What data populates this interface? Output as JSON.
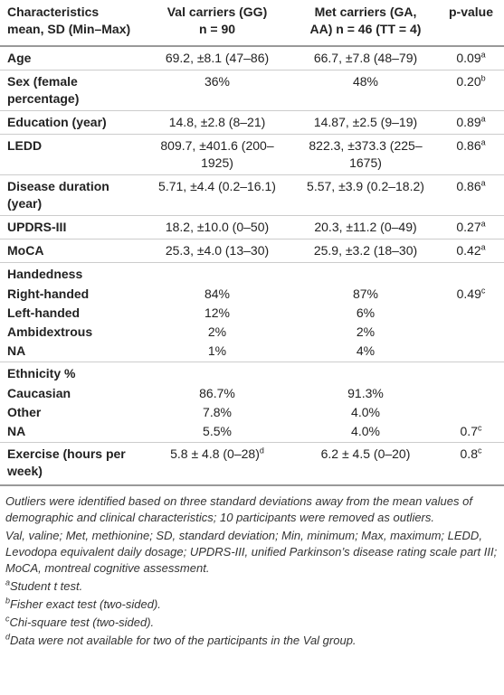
{
  "table": {
    "header": [
      [
        "Characteristics",
        "mean, SD (Min–Max)"
      ],
      [
        "Val carriers (GG)",
        "n = 90"
      ],
      [
        "Met carriers (GA,",
        "AA) n = 46 (TT = 4)"
      ],
      [
        "p-value"
      ]
    ],
    "rows": [
      {
        "label": "Age",
        "val": "69.2, ±8.1 (47–86)",
        "met": "66.7, ±7.8 (48–79)",
        "p": "0.09",
        "p_note": "a"
      },
      {
        "label": "Sex (female percentage)",
        "val": "36%",
        "met": "48%",
        "p": "0.20",
        "p_note": "b"
      },
      {
        "label": "Education (year)",
        "val": "14.8, ±2.8 (8–21)",
        "met": "14.87, ±2.5 (9–19)",
        "p": "0.89",
        "p_note": "a"
      },
      {
        "label": "LEDD",
        "val": "809.7, ±401.6 (200–1925)",
        "met": "822.3, ±373.3 (225–1675)",
        "p": "0.86",
        "p_note": "a"
      },
      {
        "label": "Disease duration (year)",
        "val": "5.71, ±4.4 (0.2–16.1)",
        "met": "5.57, ±3.9 (0.2–18.2)",
        "p": "0.86",
        "p_note": "a"
      },
      {
        "label": "UPDRS-III",
        "val": "18.2, ±10.0 (0–50)",
        "met": "20.3, ±11.2 (0–49)",
        "p": "0.27",
        "p_note": "a"
      },
      {
        "label": "MoCA",
        "val": "25.3, ±4.0 (13–30)",
        "met": "25.9, ±3.2 (18–30)",
        "p": "0.42",
        "p_note": "a"
      },
      {
        "label": "Handedness",
        "items": [
          {
            "label": "Right-handed",
            "val": "84%",
            "met": "87%",
            "p": "0.49",
            "p_note": "c"
          },
          {
            "label": "Left-handed",
            "val": "12%",
            "met": "6%"
          },
          {
            "label": "Ambidextrous",
            "val": "2%",
            "met": "2%"
          },
          {
            "label": "NA",
            "val": "1%",
            "met": "4%"
          }
        ]
      },
      {
        "label": "Ethnicity %",
        "items": [
          {
            "label": "Caucasian",
            "val": "86.7%",
            "met": "91.3%"
          },
          {
            "label": "Other",
            "val": "7.8%",
            "met": "4.0%"
          },
          {
            "label": "NA",
            "val": "5.5%",
            "met": "4.0%",
            "p": "0.7",
            "p_note": "c"
          }
        ]
      },
      {
        "label": "Exercise (hours per week)",
        "val": "5.8 ± 4.8 (0–28)",
        "val_note": "d",
        "met": "6.2 ± 4.5 (0–20)",
        "p": "0.8",
        "p_note": "c"
      }
    ]
  },
  "footnotes": {
    "paragraphs": [
      "Outliers were identified based on three standard deviations away from the mean values of demographic and clinical characteristics; 10 participants were removed as outliers.",
      "Val, valine; Met, methionine; SD, standard deviation; Min, minimum; Max, maximum; LEDD, Levodopa equivalent daily dosage; UPDRS-III, unified Parkinson’s disease rating scale part III; MoCA, montreal cognitive assessment."
    ],
    "notes": [
      {
        "mark": "a",
        "text": "Student t test."
      },
      {
        "mark": "b",
        "text": "Fisher exact test (two-sided)."
      },
      {
        "mark": "c",
        "text": "Chi-square test (two-sided)."
      },
      {
        "mark": "d",
        "text": "Data were not available for two of the participants in the Val group."
      }
    ]
  }
}
